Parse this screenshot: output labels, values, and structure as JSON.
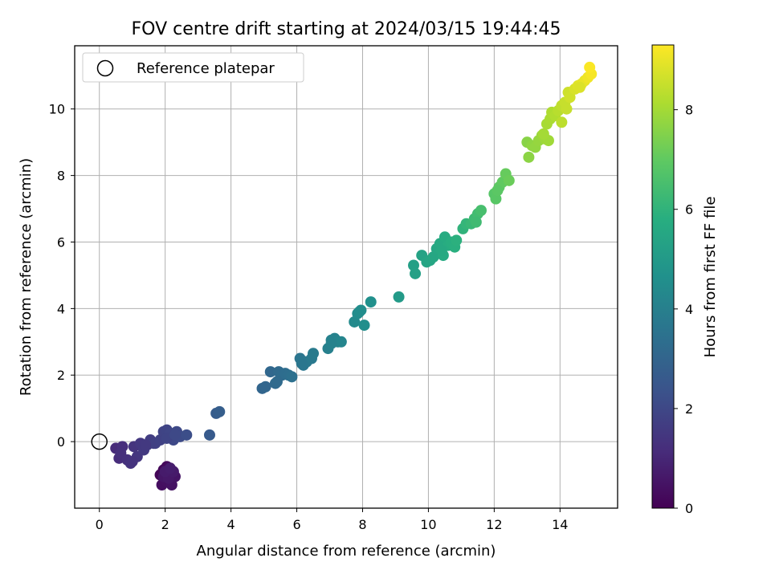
{
  "chart_data": {
    "type": "scatter",
    "title": "FOV centre drift starting at 2024/03/15 19:44:45",
    "xlabel": "Angular distance from reference (arcmin)",
    "ylabel": "Rotation from reference (arcmin)",
    "xlim": [
      -0.75,
      15.75
    ],
    "ylim": [
      -2.0,
      11.9
    ],
    "xticks": [
      0,
      2,
      4,
      6,
      8,
      10,
      12,
      14
    ],
    "yticks": [
      0,
      2,
      4,
      6,
      8,
      10
    ],
    "grid": true,
    "legend": {
      "placement": "top-left",
      "entries": [
        "Reference platepar"
      ]
    },
    "colorbar": {
      "label": "Hours from first FF file",
      "range": [
        0,
        9.3
      ],
      "ticks": [
        0,
        2,
        4,
        6,
        8
      ],
      "colormap": "viridis"
    },
    "reference_point": {
      "x": 0,
      "y": 0
    },
    "series": [
      {
        "x": [
          1.85,
          1.95,
          2.05,
          2.15,
          2.25,
          1.9,
          2.05,
          2.2,
          2.3,
          1.95,
          2.1,
          2.25,
          2.0,
          2.15,
          0.5,
          0.6,
          0.7,
          0.65,
          0.85,
          0.95,
          1.05,
          1.15,
          1.25,
          1.35,
          1.45,
          1.55,
          1.65,
          1.7,
          1.85,
          1.95,
          2.05,
          2.15,
          2.25,
          2.35,
          2.45,
          2.65,
          2.05,
          2.3,
          1.4,
          1.0,
          3.35,
          3.55,
          3.65,
          4.95,
          5.05,
          5.2,
          5.35,
          5.45,
          5.55,
          5.65,
          5.75,
          5.85,
          5.4,
          6.1,
          6.2,
          6.3,
          6.45,
          6.5,
          6.15,
          6.95,
          7.05,
          7.15,
          7.25,
          7.35,
          7.05,
          7.75,
          7.85,
          7.95,
          8.05,
          8.25,
          7.9,
          9.1,
          9.55,
          9.6,
          9.8,
          9.95,
          10.05,
          10.15,
          10.25,
          10.35,
          10.45,
          10.5,
          10.6,
          10.7,
          10.8,
          10.85,
          10.4,
          11.05,
          11.15,
          11.3,
          11.4,
          11.5,
          11.6,
          11.45,
          12.0,
          12.05,
          12.15,
          12.25,
          12.35,
          12.45,
          12.1,
          13.0,
          13.05,
          13.15,
          13.25,
          13.35,
          13.45,
          13.55,
          13.65,
          13.5,
          13.6,
          13.7,
          13.75,
          13.85,
          13.95,
          14.05,
          14.15,
          14.25,
          14.05,
          14.3,
          14.45,
          14.55,
          14.65,
          14.75,
          14.85,
          14.95,
          14.9,
          14.6,
          14.2
        ],
        "y": [
          -1.0,
          -0.85,
          -0.75,
          -0.8,
          -1.0,
          -1.3,
          -1.2,
          -1.3,
          -1.05,
          -1.05,
          -1.1,
          -0.9,
          -0.9,
          -0.8,
          -0.2,
          -0.5,
          -0.15,
          -0.35,
          -0.55,
          -0.65,
          -0.15,
          -0.45,
          -0.05,
          -0.25,
          -0.1,
          0.05,
          -0.05,
          -0.05,
          0.05,
          0.3,
          0.35,
          0.25,
          0.05,
          0.3,
          0.15,
          0.2,
          0.1,
          0.2,
          -0.1,
          -0.6,
          0.2,
          0.85,
          0.9,
          1.6,
          1.65,
          2.1,
          1.75,
          2.1,
          2.0,
          2.05,
          2.0,
          1.95,
          1.8,
          2.5,
          2.3,
          2.4,
          2.5,
          2.65,
          2.35,
          2.8,
          3.05,
          3.1,
          3.0,
          3.0,
          2.95,
          3.6,
          3.85,
          3.95,
          3.5,
          4.2,
          3.9,
          4.35,
          5.3,
          5.05,
          5.6,
          5.4,
          5.45,
          5.55,
          5.8,
          5.95,
          5.6,
          6.15,
          5.9,
          6.0,
          5.85,
          6.05,
          5.75,
          6.4,
          6.55,
          6.55,
          6.7,
          6.85,
          6.95,
          6.6,
          7.45,
          7.3,
          7.65,
          7.8,
          8.05,
          7.85,
          7.55,
          9.0,
          8.55,
          8.9,
          8.85,
          9.05,
          9.2,
          9.1,
          9.05,
          9.25,
          9.55,
          9.7,
          9.9,
          9.8,
          9.95,
          10.1,
          10.2,
          10.5,
          9.6,
          10.35,
          10.6,
          10.7,
          10.75,
          10.85,
          10.95,
          11.05,
          11.25,
          10.65,
          10.0
        ],
        "c": [
          0.1,
          0.15,
          0.2,
          0.25,
          0.3,
          0.35,
          0.4,
          0.45,
          0.5,
          0.55,
          0.6,
          0.65,
          0.7,
          0.75,
          1.1,
          1.15,
          1.2,
          1.25,
          1.3,
          1.35,
          1.4,
          1.45,
          1.5,
          1.55,
          1.6,
          1.65,
          1.7,
          1.75,
          1.8,
          1.85,
          1.9,
          1.95,
          2.0,
          2.05,
          2.1,
          2.2,
          1.9,
          2.05,
          1.55,
          1.35,
          2.6,
          2.7,
          2.75,
          3.0,
          3.05,
          3.1,
          3.15,
          3.2,
          3.25,
          3.3,
          3.35,
          3.4,
          3.2,
          3.6,
          3.65,
          3.7,
          3.75,
          3.8,
          3.65,
          4.0,
          4.05,
          4.1,
          4.15,
          4.2,
          4.1,
          4.4,
          4.45,
          4.5,
          4.55,
          4.6,
          4.5,
          5.0,
          5.2,
          5.25,
          5.35,
          5.4,
          5.45,
          5.5,
          5.55,
          5.6,
          5.65,
          5.7,
          5.75,
          5.8,
          5.85,
          5.9,
          5.6,
          6.0,
          6.1,
          6.2,
          6.3,
          6.4,
          6.5,
          6.35,
          6.8,
          6.85,
          6.95,
          7.0,
          7.1,
          7.15,
          6.9,
          7.6,
          7.65,
          7.7,
          7.75,
          7.8,
          7.85,
          7.9,
          7.95,
          8.0,
          8.05,
          8.1,
          8.15,
          8.2,
          8.3,
          8.4,
          8.5,
          8.6,
          8.35,
          8.65,
          8.75,
          8.85,
          8.95,
          9.0,
          9.1,
          9.2,
          9.25,
          8.8,
          8.5
        ]
      }
    ]
  }
}
